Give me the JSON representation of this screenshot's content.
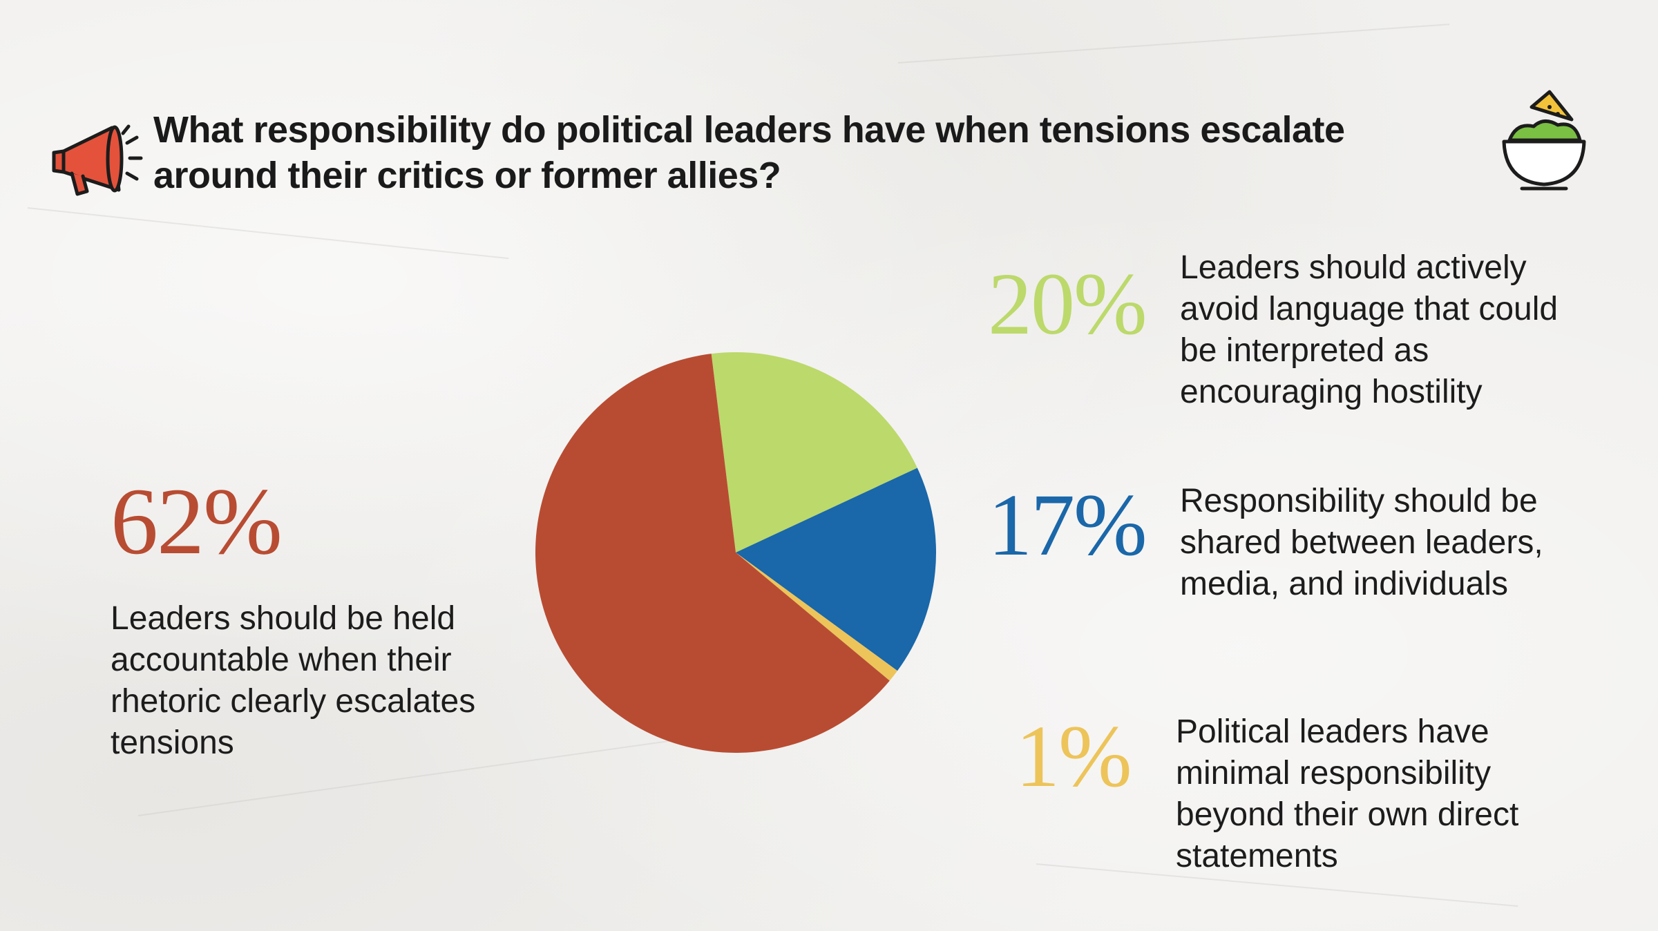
{
  "title": "What responsibility do political leaders have when tensions escalate around their critics or former allies?",
  "icons": [
    "megaphone-icon",
    "guacamole-bowl-icon"
  ],
  "colors": {
    "red": "#b84c32",
    "green": "#bcd96b",
    "blue": "#1a67a9",
    "yellow": "#edc45a",
    "text": "#1c1c1c",
    "background": "#f1f0ee"
  },
  "chart_data": {
    "type": "pie",
    "title": "What responsibility do political leaders have when tensions escalate around their critics or former allies?",
    "start_angle_deg": -7,
    "direction": "clockwise",
    "slices": [
      {
        "id": "green",
        "label": "Leaders should actively avoid language that could be interpreted as encouraging hostility",
        "value": 20,
        "value_label": "20%",
        "color": "#bcd96b"
      },
      {
        "id": "blue",
        "label": "Responsibility should be shared between leaders, media, and individuals",
        "value": 17,
        "value_label": "17%",
        "color": "#1a67a9"
      },
      {
        "id": "yellow",
        "label": "Political leaders have minimal responsibility beyond their own direct statements",
        "value": 1,
        "value_label": "1%",
        "color": "#edc45a"
      },
      {
        "id": "red",
        "label": "Leaders should be held accountable when their rhetoric clearly escalates tensions",
        "value": 62,
        "value_label": "62%",
        "color": "#b84c32"
      }
    ]
  }
}
